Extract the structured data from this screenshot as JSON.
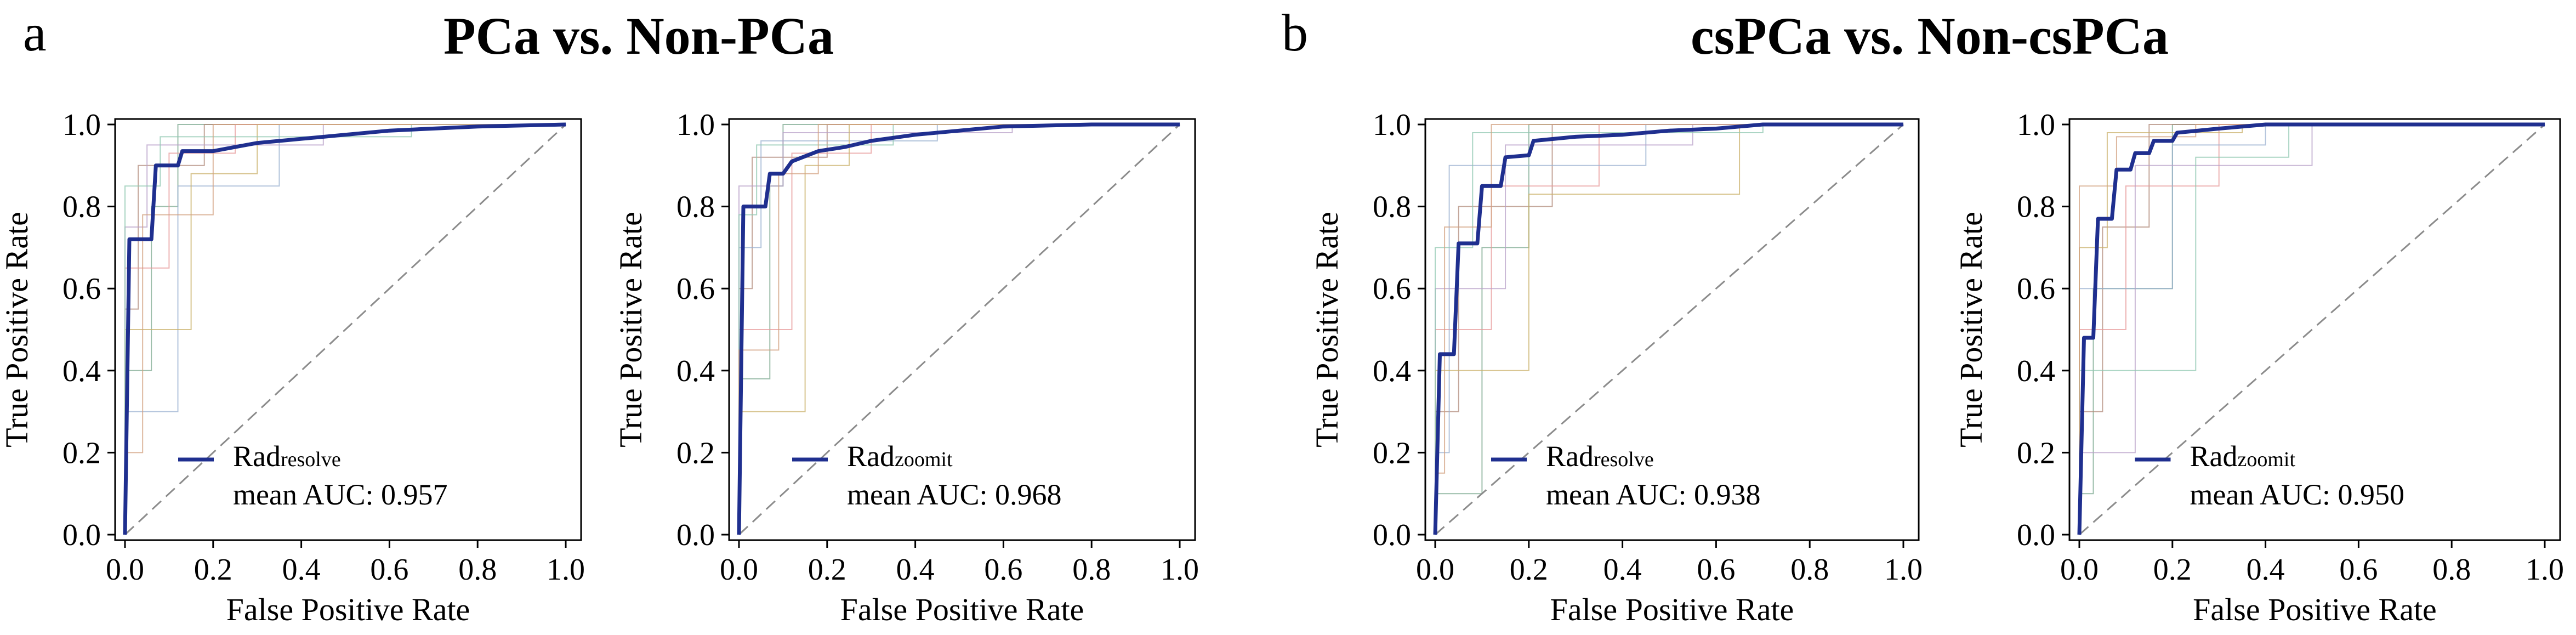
{
  "colors": {
    "mean_curve": "#1f2f8f",
    "fold_curves": [
      "#7ba88f",
      "#b08a7a",
      "#e79a9a",
      "#9ab0d0",
      "#b8a0c8",
      "#c9b06a",
      "#8fc7b0",
      "#d2a07f"
    ],
    "diagonal": "#8c8c8c",
    "axis": "#000000"
  },
  "panels": [
    {
      "label": "a",
      "title": "PCa vs. Non-PCa"
    },
    {
      "label": "b",
      "title": "csPCa vs. Non-csPCa"
    }
  ],
  "chart_data": [
    {
      "type": "line",
      "panel": "a",
      "xlabel": "False Positive Rate",
      "ylabel": "True Positive Rate",
      "xlim": [
        0,
        1
      ],
      "ylim": [
        0,
        1
      ],
      "xticks": [
        "0.0",
        "0.2",
        "0.4",
        "0.6",
        "0.8",
        "1.0"
      ],
      "yticks": [
        "0.0",
        "0.2",
        "0.4",
        "0.6",
        "0.8",
        "1.0"
      ],
      "legend": {
        "name": "Rad",
        "subscript": "resolve",
        "auc_label": "mean AUC: 0.957",
        "placement": "lower-right"
      },
      "mean_auc": 0.957,
      "mean_roc": [
        [
          0.0,
          0.0
        ],
        [
          0.01,
          0.72
        ],
        [
          0.06,
          0.72
        ],
        [
          0.07,
          0.9
        ],
        [
          0.12,
          0.9
        ],
        [
          0.13,
          0.935
        ],
        [
          0.2,
          0.935
        ],
        [
          0.25,
          0.945
        ],
        [
          0.3,
          0.955
        ],
        [
          0.4,
          0.965
        ],
        [
          0.5,
          0.975
        ],
        [
          0.6,
          0.985
        ],
        [
          0.8,
          0.995
        ],
        [
          1.0,
          1.0
        ]
      ],
      "fold_rocs": [
        [
          [
            0,
            0
          ],
          [
            0,
            0.4
          ],
          [
            0.06,
            0.4
          ],
          [
            0.06,
            0.8
          ],
          [
            0.12,
            0.8
          ],
          [
            0.12,
            1
          ],
          [
            1,
            1
          ]
        ],
        [
          [
            0,
            0
          ],
          [
            0,
            0.55
          ],
          [
            0.03,
            0.55
          ],
          [
            0.03,
            0.9
          ],
          [
            0.18,
            0.9
          ],
          [
            0.18,
            1
          ],
          [
            1,
            1
          ]
        ],
        [
          [
            0,
            0
          ],
          [
            0,
            0.65
          ],
          [
            0.1,
            0.65
          ],
          [
            0.1,
            0.93
          ],
          [
            0.25,
            0.93
          ],
          [
            0.25,
            1
          ],
          [
            1,
            1
          ]
        ],
        [
          [
            0,
            0
          ],
          [
            0,
            0.3
          ],
          [
            0.12,
            0.3
          ],
          [
            0.12,
            0.85
          ],
          [
            0.35,
            0.85
          ],
          [
            0.35,
            1
          ],
          [
            1,
            1
          ]
        ],
        [
          [
            0,
            0
          ],
          [
            0,
            0.75
          ],
          [
            0.05,
            0.75
          ],
          [
            0.05,
            0.95
          ],
          [
            0.45,
            0.95
          ],
          [
            0.45,
            1
          ],
          [
            1,
            1
          ]
        ],
        [
          [
            0,
            0
          ],
          [
            0,
            0.5
          ],
          [
            0.15,
            0.5
          ],
          [
            0.15,
            0.88
          ],
          [
            0.3,
            0.88
          ],
          [
            0.3,
            1
          ],
          [
            1,
            1
          ]
        ],
        [
          [
            0,
            0
          ],
          [
            0,
            0.85
          ],
          [
            0.08,
            0.85
          ],
          [
            0.08,
            0.97
          ],
          [
            0.65,
            0.97
          ],
          [
            0.65,
            1
          ],
          [
            1,
            1
          ]
        ],
        [
          [
            0,
            0
          ],
          [
            0,
            0.2
          ],
          [
            0.04,
            0.2
          ],
          [
            0.04,
            0.78
          ],
          [
            0.2,
            0.78
          ],
          [
            0.2,
            1
          ],
          [
            1,
            1
          ]
        ]
      ]
    },
    {
      "type": "line",
      "panel": "a",
      "xlabel": "False Positive Rate",
      "ylabel": "True Positive Rate",
      "xlim": [
        0,
        1
      ],
      "ylim": [
        0,
        1
      ],
      "xticks": [
        "0.0",
        "0.2",
        "0.4",
        "0.6",
        "0.8",
        "1.0"
      ],
      "yticks": [
        "0.0",
        "0.2",
        "0.4",
        "0.6",
        "0.8",
        "1.0"
      ],
      "legend": {
        "name": "Rad",
        "subscript": "zoomit",
        "auc_label": "mean AUC: 0.968",
        "placement": "lower-right"
      },
      "mean_auc": 0.968,
      "mean_roc": [
        [
          0.0,
          0.0
        ],
        [
          0.01,
          0.8
        ],
        [
          0.06,
          0.8
        ],
        [
          0.07,
          0.88
        ],
        [
          0.1,
          0.88
        ],
        [
          0.12,
          0.91
        ],
        [
          0.18,
          0.935
        ],
        [
          0.24,
          0.945
        ],
        [
          0.3,
          0.96
        ],
        [
          0.4,
          0.975
        ],
        [
          0.5,
          0.985
        ],
        [
          0.6,
          0.995
        ],
        [
          0.8,
          1.0
        ],
        [
          1.0,
          1.0
        ]
      ],
      "fold_rocs": [
        [
          [
            0,
            0
          ],
          [
            0,
            0.38
          ],
          [
            0.07,
            0.38
          ],
          [
            0.07,
            0.85
          ],
          [
            0.1,
            0.85
          ],
          [
            0.1,
            1
          ],
          [
            1,
            1
          ]
        ],
        [
          [
            0,
            0
          ],
          [
            0,
            0.6
          ],
          [
            0.03,
            0.6
          ],
          [
            0.03,
            0.92
          ],
          [
            0.2,
            0.92
          ],
          [
            0.2,
            1
          ],
          [
            1,
            1
          ]
        ],
        [
          [
            0,
            0
          ],
          [
            0,
            0.5
          ],
          [
            0.12,
            0.5
          ],
          [
            0.12,
            0.93
          ],
          [
            0.3,
            0.93
          ],
          [
            0.3,
            1
          ],
          [
            1,
            1
          ]
        ],
        [
          [
            0,
            0
          ],
          [
            0,
            0.7
          ],
          [
            0.05,
            0.7
          ],
          [
            0.05,
            0.96
          ],
          [
            0.45,
            0.96
          ],
          [
            0.45,
            1
          ],
          [
            1,
            1
          ]
        ],
        [
          [
            0,
            0
          ],
          [
            0,
            0.85
          ],
          [
            0.1,
            0.85
          ],
          [
            0.1,
            0.98
          ],
          [
            0.62,
            0.98
          ],
          [
            0.62,
            1
          ],
          [
            1,
            1
          ]
        ],
        [
          [
            0,
            0
          ],
          [
            0,
            0.3
          ],
          [
            0.15,
            0.3
          ],
          [
            0.15,
            0.9
          ],
          [
            0.25,
            0.9
          ],
          [
            0.25,
            1
          ],
          [
            1,
            1
          ]
        ],
        [
          [
            0,
            0
          ],
          [
            0,
            0.78
          ],
          [
            0.04,
            0.78
          ],
          [
            0.04,
            0.95
          ],
          [
            0.35,
            0.95
          ],
          [
            0.35,
            1
          ],
          [
            1,
            1
          ]
        ],
        [
          [
            0,
            0
          ],
          [
            0,
            0.45
          ],
          [
            0.09,
            0.45
          ],
          [
            0.09,
            0.88
          ],
          [
            0.18,
            0.88
          ],
          [
            0.18,
            1
          ],
          [
            1,
            1
          ]
        ]
      ]
    },
    {
      "type": "line",
      "panel": "b",
      "xlabel": "False Positive Rate",
      "ylabel": "True Positive Rate",
      "xlim": [
        0,
        1
      ],
      "ylim": [
        0,
        1
      ],
      "xticks": [
        "0.0",
        "0.2",
        "0.4",
        "0.6",
        "0.8",
        "1.0"
      ],
      "yticks": [
        "0.0",
        "0.2",
        "0.4",
        "0.6",
        "0.8",
        "1.0"
      ],
      "legend": {
        "name": "Rad",
        "subscript": "resolve",
        "auc_label": "mean AUC: 0.938",
        "placement": "lower-right"
      },
      "mean_auc": 0.938,
      "mean_roc": [
        [
          0.0,
          0.0
        ],
        [
          0.01,
          0.44
        ],
        [
          0.04,
          0.44
        ],
        [
          0.05,
          0.71
        ],
        [
          0.09,
          0.71
        ],
        [
          0.1,
          0.85
        ],
        [
          0.14,
          0.85
        ],
        [
          0.15,
          0.92
        ],
        [
          0.2,
          0.925
        ],
        [
          0.21,
          0.96
        ],
        [
          0.3,
          0.97
        ],
        [
          0.4,
          0.975
        ],
        [
          0.5,
          0.985
        ],
        [
          0.6,
          0.99
        ],
        [
          0.7,
          1.0
        ],
        [
          1.0,
          1.0
        ]
      ],
      "fold_rocs": [
        [
          [
            0,
            0
          ],
          [
            0,
            0.1
          ],
          [
            0.1,
            0.1
          ],
          [
            0.1,
            0.7
          ],
          [
            0.2,
            0.7
          ],
          [
            0.2,
            1
          ],
          [
            1,
            1
          ]
        ],
        [
          [
            0,
            0
          ],
          [
            0,
            0.3
          ],
          [
            0.05,
            0.3
          ],
          [
            0.05,
            0.8
          ],
          [
            0.25,
            0.8
          ],
          [
            0.25,
            1
          ],
          [
            1,
            1
          ]
        ],
        [
          [
            0,
            0
          ],
          [
            0,
            0.5
          ],
          [
            0.12,
            0.5
          ],
          [
            0.12,
            0.85
          ],
          [
            0.35,
            0.85
          ],
          [
            0.35,
            1
          ],
          [
            1,
            1
          ]
        ],
        [
          [
            0,
            0
          ],
          [
            0,
            0.2
          ],
          [
            0.03,
            0.2
          ],
          [
            0.03,
            0.9
          ],
          [
            0.45,
            0.9
          ],
          [
            0.45,
            1
          ],
          [
            1,
            1
          ]
        ],
        [
          [
            0,
            0
          ],
          [
            0,
            0.6
          ],
          [
            0.15,
            0.6
          ],
          [
            0.15,
            0.95
          ],
          [
            0.55,
            0.95
          ],
          [
            0.55,
            1
          ],
          [
            1,
            1
          ]
        ],
        [
          [
            0,
            0
          ],
          [
            0,
            0.4
          ],
          [
            0.2,
            0.4
          ],
          [
            0.2,
            0.83
          ],
          [
            0.65,
            0.83
          ],
          [
            0.65,
            1
          ],
          [
            1,
            1
          ]
        ],
        [
          [
            0,
            0
          ],
          [
            0,
            0.7
          ],
          [
            0.08,
            0.7
          ],
          [
            0.08,
            0.98
          ],
          [
            0.7,
            0.98
          ],
          [
            0.7,
            1
          ],
          [
            1,
            1
          ]
        ],
        [
          [
            0,
            0
          ],
          [
            0,
            0.15
          ],
          [
            0.02,
            0.15
          ],
          [
            0.02,
            0.75
          ],
          [
            0.12,
            0.75
          ],
          [
            0.12,
            1
          ],
          [
            1,
            1
          ]
        ]
      ]
    },
    {
      "type": "line",
      "panel": "b",
      "xlabel": "False Positive Rate",
      "ylabel": "True Positive Rate",
      "xlim": [
        0,
        1
      ],
      "ylim": [
        0,
        1
      ],
      "xticks": [
        "0.0",
        "0.2",
        "0.4",
        "0.6",
        "0.8",
        "1.0"
      ],
      "yticks": [
        "0.0",
        "0.2",
        "0.4",
        "0.6",
        "0.8",
        "1.0"
      ],
      "legend": {
        "name": "Rad",
        "subscript": "zoomit",
        "auc_label": "mean AUC: 0.950",
        "placement": "lower-right"
      },
      "mean_auc": 0.95,
      "mean_roc": [
        [
          0.0,
          0.0
        ],
        [
          0.01,
          0.48
        ],
        [
          0.03,
          0.48
        ],
        [
          0.04,
          0.77
        ],
        [
          0.07,
          0.77
        ],
        [
          0.08,
          0.89
        ],
        [
          0.11,
          0.89
        ],
        [
          0.12,
          0.93
        ],
        [
          0.15,
          0.93
        ],
        [
          0.16,
          0.96
        ],
        [
          0.2,
          0.96
        ],
        [
          0.21,
          0.98
        ],
        [
          0.3,
          0.99
        ],
        [
          0.4,
          1.0
        ],
        [
          1.0,
          1.0
        ]
      ],
      "fold_rocs": [
        [
          [
            0,
            0
          ],
          [
            0,
            0.1
          ],
          [
            0.03,
            0.1
          ],
          [
            0.03,
            0.6
          ],
          [
            0.2,
            0.6
          ],
          [
            0.2,
            1
          ],
          [
            1,
            1
          ]
        ],
        [
          [
            0,
            0
          ],
          [
            0,
            0.3
          ],
          [
            0.05,
            0.3
          ],
          [
            0.05,
            0.75
          ],
          [
            0.15,
            0.75
          ],
          [
            0.15,
            1
          ],
          [
            1,
            1
          ]
        ],
        [
          [
            0,
            0
          ],
          [
            0,
            0.5
          ],
          [
            0.1,
            0.5
          ],
          [
            0.1,
            0.85
          ],
          [
            0.3,
            0.85
          ],
          [
            0.3,
            1
          ],
          [
            1,
            1
          ]
        ],
        [
          [
            0,
            0
          ],
          [
            0,
            0.6
          ],
          [
            0.2,
            0.6
          ],
          [
            0.2,
            0.95
          ],
          [
            0.4,
            0.95
          ],
          [
            0.4,
            1
          ],
          [
            1,
            1
          ]
        ],
        [
          [
            0,
            0
          ],
          [
            0,
            0.2
          ],
          [
            0.12,
            0.2
          ],
          [
            0.12,
            0.9
          ],
          [
            0.5,
            0.9
          ],
          [
            0.5,
            1
          ],
          [
            1,
            1
          ]
        ],
        [
          [
            0,
            0
          ],
          [
            0,
            0.7
          ],
          [
            0.06,
            0.7
          ],
          [
            0.06,
            0.98
          ],
          [
            0.35,
            0.98
          ],
          [
            0.35,
            1
          ],
          [
            1,
            1
          ]
        ],
        [
          [
            0,
            0
          ],
          [
            0,
            0.4
          ],
          [
            0.25,
            0.4
          ],
          [
            0.25,
            0.92
          ],
          [
            0.45,
            0.92
          ],
          [
            0.45,
            1
          ],
          [
            1,
            1
          ]
        ],
        [
          [
            0,
            0
          ],
          [
            0,
            0.85
          ],
          [
            0.08,
            0.85
          ],
          [
            0.08,
            0.97
          ],
          [
            0.25,
            0.97
          ],
          [
            0.25,
            1
          ],
          [
            1,
            1
          ]
        ]
      ]
    }
  ]
}
